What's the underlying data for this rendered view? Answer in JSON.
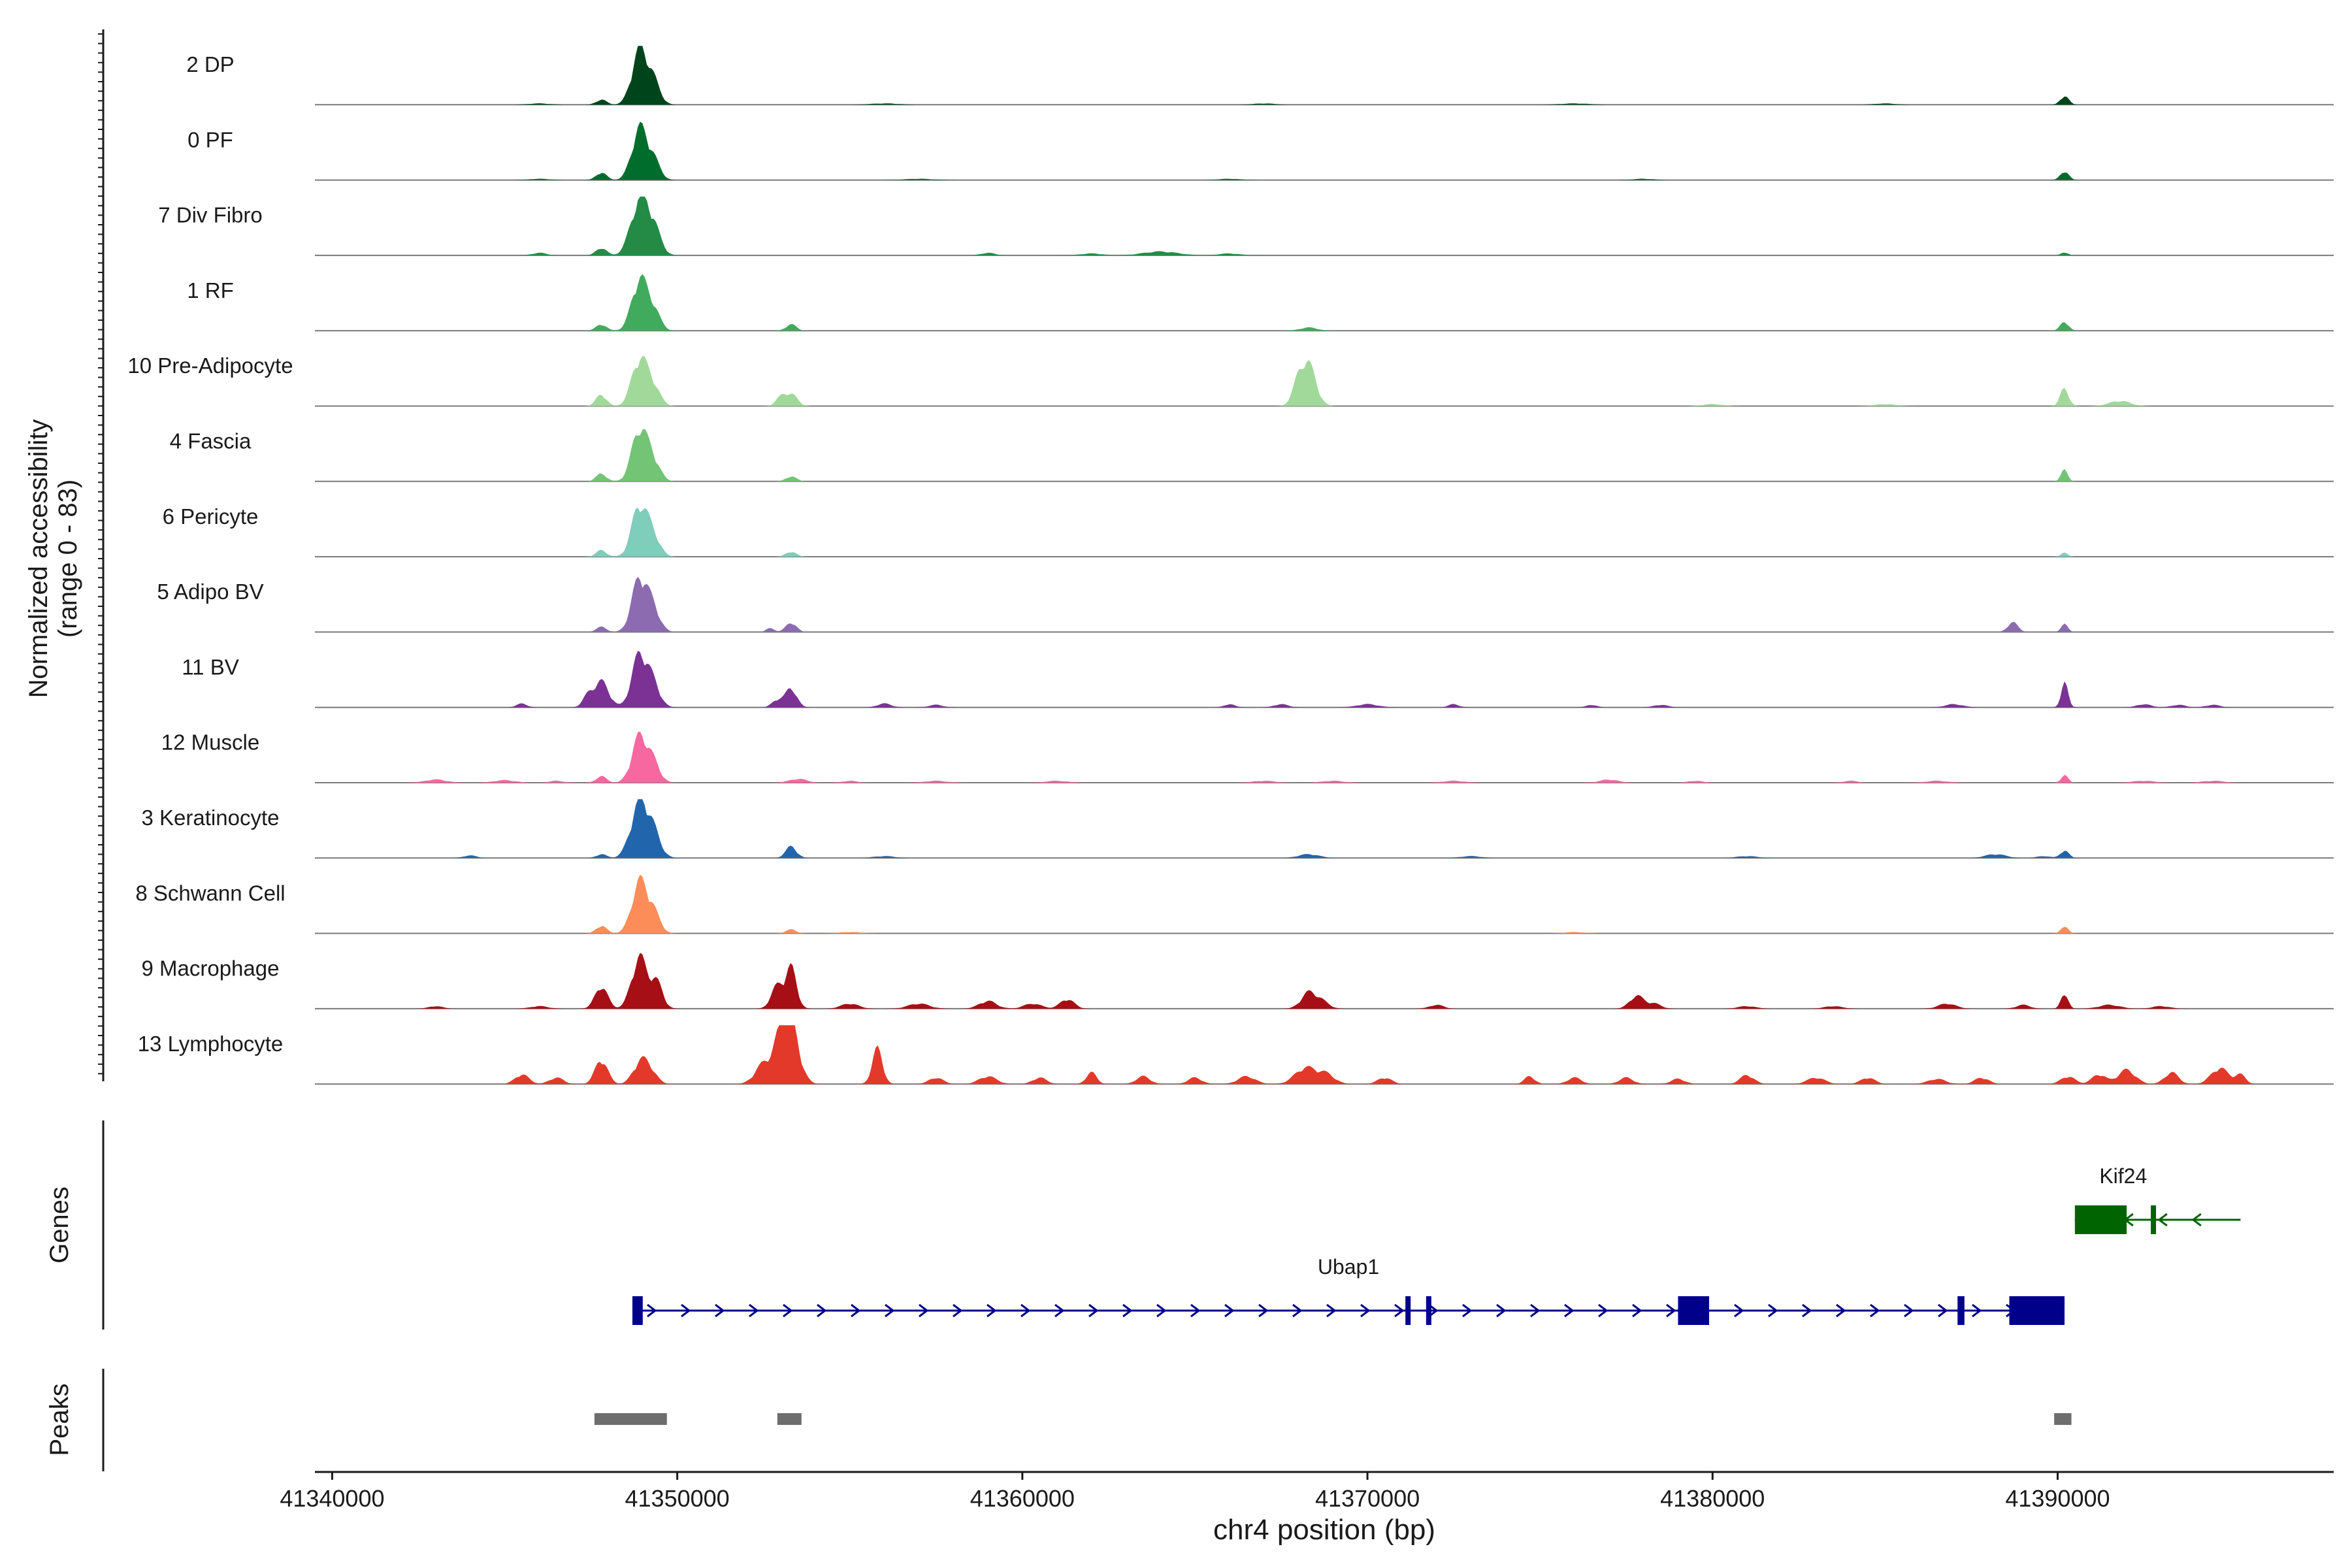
{
  "chart_data": {
    "type": "area",
    "title": "",
    "xlabel": "chr4 position (bp)",
    "ylabel_line1": "Normalized accessibility",
    "ylabel_line2": "(range 0 - 83)",
    "xlim": [
      41339500,
      41398000
    ],
    "ylim": [
      0,
      83
    ],
    "x_ticks": [
      41340000,
      41350000,
      41360000,
      41370000,
      41380000,
      41390000
    ],
    "x_tick_labels": [
      "41340000",
      "41350000",
      "41360000",
      "41370000",
      "41380000",
      "41390000"
    ],
    "series": [
      {
        "name": "2 DP",
        "color": "#00441b",
        "peaks": [
          [
            41348900,
            83,
            220
          ],
          [
            41349300,
            35,
            200
          ],
          [
            41347800,
            8,
            150
          ],
          [
            41390200,
            14,
            120
          ],
          [
            41346000,
            2,
            300
          ],
          [
            41356000,
            2,
            400
          ],
          [
            41367000,
            2,
            300
          ],
          [
            41376000,
            2,
            400
          ],
          [
            41385000,
            2,
            300
          ]
        ]
      },
      {
        "name": "0 PF",
        "color": "#006d2c",
        "peaks": [
          [
            41348900,
            78,
            220
          ],
          [
            41349300,
            30,
            200
          ],
          [
            41347800,
            12,
            150
          ],
          [
            41390200,
            14,
            120
          ],
          [
            41346000,
            2,
            300
          ],
          [
            41357000,
            2,
            400
          ],
          [
            41366000,
            2,
            300
          ],
          [
            41378000,
            2,
            300
          ]
        ]
      },
      {
        "name": "7 Div Fibro",
        "color": "#238b45",
        "peaks": [
          [
            41348900,
            83,
            250
          ],
          [
            41349300,
            40,
            220
          ],
          [
            41347800,
            12,
            150
          ],
          [
            41346000,
            4,
            200
          ],
          [
            41359000,
            4,
            200
          ],
          [
            41362000,
            3,
            300
          ],
          [
            41364000,
            6,
            500
          ],
          [
            41366000,
            3,
            300
          ],
          [
            41390200,
            5,
            100
          ]
        ]
      },
      {
        "name": "1 RF",
        "color": "#41ab5d",
        "peaks": [
          [
            41348900,
            78,
            220
          ],
          [
            41349300,
            32,
            200
          ],
          [
            41347800,
            10,
            150
          ],
          [
            41353300,
            10,
            150
          ],
          [
            41368300,
            5,
            250
          ],
          [
            41390200,
            14,
            120
          ]
        ]
      },
      {
        "name": "10 Pre-Adipocyte",
        "color": "#a1d99b",
        "peaks": [
          [
            41348900,
            72,
            220
          ],
          [
            41349300,
            30,
            200
          ],
          [
            41347800,
            18,
            150
          ],
          [
            41353300,
            18,
            180
          ],
          [
            41353000,
            12,
            150
          ],
          [
            41368300,
            60,
            220
          ],
          [
            41368000,
            30,
            180
          ],
          [
            41390200,
            28,
            120
          ],
          [
            41391800,
            8,
            300
          ],
          [
            41380000,
            3,
            300
          ],
          [
            41385000,
            3,
            300
          ]
        ]
      },
      {
        "name": "4 Fascia",
        "color": "#74c476",
        "peaks": [
          [
            41348900,
            80,
            220
          ],
          [
            41349300,
            32,
            200
          ],
          [
            41347800,
            12,
            150
          ],
          [
            41353300,
            8,
            150
          ],
          [
            41390200,
            18,
            100
          ]
        ]
      },
      {
        "name": "6 Pericyte",
        "color": "#7fcdbb",
        "peaks": [
          [
            41348900,
            78,
            220
          ],
          [
            41349300,
            32,
            200
          ],
          [
            41347800,
            10,
            150
          ],
          [
            41353300,
            8,
            150
          ],
          [
            41390200,
            6,
            100
          ]
        ]
      },
      {
        "name": "5 Adipo BV",
        "color": "#8c6bb1",
        "peaks": [
          [
            41348900,
            82,
            220
          ],
          [
            41349300,
            35,
            200
          ],
          [
            41347800,
            8,
            150
          ],
          [
            41353300,
            15,
            150
          ],
          [
            41352700,
            6,
            120
          ],
          [
            41388700,
            15,
            150
          ],
          [
            41390200,
            12,
            100
          ]
        ]
      },
      {
        "name": "11 BV",
        "color": "#7b3294",
        "peaks": [
          [
            41348900,
            80,
            220
          ],
          [
            41349300,
            35,
            200
          ],
          [
            41347800,
            40,
            220
          ],
          [
            41347400,
            15,
            150
          ],
          [
            41353300,
            30,
            160
          ],
          [
            41352900,
            12,
            150
          ],
          [
            41345500,
            6,
            150
          ],
          [
            41356000,
            6,
            200
          ],
          [
            41357500,
            4,
            200
          ],
          [
            41366000,
            5,
            150
          ],
          [
            41367500,
            5,
            200
          ],
          [
            41370000,
            5,
            300
          ],
          [
            41372500,
            5,
            150
          ],
          [
            41376500,
            4,
            150
          ],
          [
            41378500,
            4,
            200
          ],
          [
            41387000,
            5,
            250
          ],
          [
            41390200,
            38,
            100
          ],
          [
            41392500,
            5,
            200
          ],
          [
            41393500,
            4,
            200
          ],
          [
            41394500,
            4,
            200
          ]
        ]
      },
      {
        "name": "12 Muscle",
        "color": "#f768a1",
        "peaks": [
          [
            41348900,
            70,
            220
          ],
          [
            41349300,
            30,
            200
          ],
          [
            41347800,
            10,
            150
          ],
          [
            41343000,
            5,
            300
          ],
          [
            41345000,
            4,
            300
          ],
          [
            41346500,
            3,
            200
          ],
          [
            41353500,
            6,
            250
          ],
          [
            41355000,
            3,
            200
          ],
          [
            41357500,
            3,
            300
          ],
          [
            41361000,
            3,
            300
          ],
          [
            41367000,
            3,
            300
          ],
          [
            41369000,
            3,
            300
          ],
          [
            41372500,
            3,
            300
          ],
          [
            41377000,
            5,
            250
          ],
          [
            41379500,
            3,
            200
          ],
          [
            41384000,
            3,
            200
          ],
          [
            41386500,
            3,
            300
          ],
          [
            41390200,
            12,
            100
          ],
          [
            41392500,
            3,
            300
          ],
          [
            41394500,
            3,
            300
          ]
        ]
      },
      {
        "name": "3 Keratinocyte",
        "color": "#2166ac",
        "peaks": [
          [
            41348900,
            83,
            250
          ],
          [
            41349300,
            35,
            220
          ],
          [
            41347800,
            6,
            150
          ],
          [
            41353300,
            18,
            160
          ],
          [
            41344000,
            4,
            200
          ],
          [
            41368300,
            6,
            300
          ],
          [
            41373000,
            3,
            300
          ],
          [
            41388200,
            6,
            300
          ],
          [
            41389600,
            3,
            200
          ],
          [
            41390200,
            12,
            120
          ],
          [
            41356000,
            3,
            300
          ],
          [
            41381000,
            3,
            300
          ]
        ]
      },
      {
        "name": "8 Schwann Cell",
        "color": "#fc8d59",
        "peaks": [
          [
            41348900,
            78,
            220
          ],
          [
            41349300,
            32,
            200
          ],
          [
            41347800,
            12,
            150
          ],
          [
            41353300,
            6,
            150
          ],
          [
            41390200,
            12,
            100
          ],
          [
            41355000,
            2,
            300
          ],
          [
            41376000,
            2,
            300
          ]
        ]
      },
      {
        "name": "9 Macrophage",
        "color": "#a50f15",
        "peaks": [
          [
            41348900,
            80,
            220
          ],
          [
            41349400,
            40,
            180
          ],
          [
            41347800,
            35,
            180
          ],
          [
            41353300,
            62,
            160
          ],
          [
            41352900,
            35,
            180
          ],
          [
            41343000,
            4,
            200
          ],
          [
            41346000,
            4,
            250
          ],
          [
            41355000,
            8,
            250
          ],
          [
            41357000,
            8,
            300
          ],
          [
            41359000,
            12,
            250
          ],
          [
            41360300,
            8,
            250
          ],
          [
            41361300,
            15,
            200
          ],
          [
            41368300,
            25,
            220
          ],
          [
            41368700,
            10,
            200
          ],
          [
            41372000,
            6,
            200
          ],
          [
            41377800,
            20,
            200
          ],
          [
            41378300,
            8,
            200
          ],
          [
            41381000,
            4,
            250
          ],
          [
            41383500,
            4,
            250
          ],
          [
            41386800,
            8,
            250
          ],
          [
            41389000,
            6,
            200
          ],
          [
            41390200,
            25,
            100
          ],
          [
            41391500,
            6,
            300
          ],
          [
            41393000,
            4,
            250
          ]
        ]
      },
      {
        "name": "13 Lymphocyte",
        "color": "#e3392b",
        "peaks": [
          [
            41353300,
            83,
            240
          ],
          [
            41353000,
            55,
            220
          ],
          [
            41352500,
            30,
            250
          ],
          [
            41355800,
            55,
            150
          ],
          [
            41348900,
            30,
            200
          ],
          [
            41349200,
            22,
            200
          ],
          [
            41347800,
            38,
            180
          ],
          [
            41345500,
            15,
            200
          ],
          [
            41346500,
            10,
            200
          ],
          [
            41357500,
            10,
            200
          ],
          [
            41359000,
            12,
            250
          ],
          [
            41360500,
            10,
            200
          ],
          [
            41362000,
            18,
            150
          ],
          [
            41363500,
            12,
            200
          ],
          [
            41365000,
            10,
            200
          ],
          [
            41366500,
            12,
            250
          ],
          [
            41368200,
            25,
            300
          ],
          [
            41368800,
            15,
            250
          ],
          [
            41370500,
            10,
            200
          ],
          [
            41374700,
            12,
            150
          ],
          [
            41376000,
            10,
            200
          ],
          [
            41377500,
            10,
            200
          ],
          [
            41379000,
            8,
            200
          ],
          [
            41381000,
            14,
            200
          ],
          [
            41383000,
            10,
            250
          ],
          [
            41384500,
            10,
            200
          ],
          [
            41386500,
            8,
            250
          ],
          [
            41387800,
            10,
            200
          ],
          [
            41390300,
            12,
            200
          ],
          [
            41391200,
            15,
            200
          ],
          [
            41392000,
            22,
            250
          ],
          [
            41393300,
            18,
            200
          ],
          [
            41394700,
            25,
            250
          ],
          [
            41395300,
            14,
            150
          ]
        ]
      }
    ],
    "genes_label": "Genes",
    "genes": [
      {
        "name": "Ubap1",
        "start": 41348700,
        "end": 41390200,
        "strand": "+",
        "color": "#00008b",
        "exons": [
          [
            41348700,
            41349000
          ],
          [
            41371100,
            41371250
          ],
          [
            41371700,
            41371850
          ],
          [
            41379000,
            41379900
          ],
          [
            41387100,
            41387300
          ],
          [
            41388600,
            41390200
          ]
        ]
      },
      {
        "name": "Kif24",
        "start": 41390500,
        "end": 41395300,
        "strand": "-",
        "color": "#006400",
        "exons": [
          [
            41390500,
            41392000
          ],
          [
            41392700,
            41392800
          ]
        ]
      }
    ],
    "peaks_label": "Peaks",
    "peak_regions": [
      [
        41347600,
        41349700
      ],
      [
        41352900,
        41353600
      ],
      [
        41389900,
        41390400
      ]
    ]
  }
}
